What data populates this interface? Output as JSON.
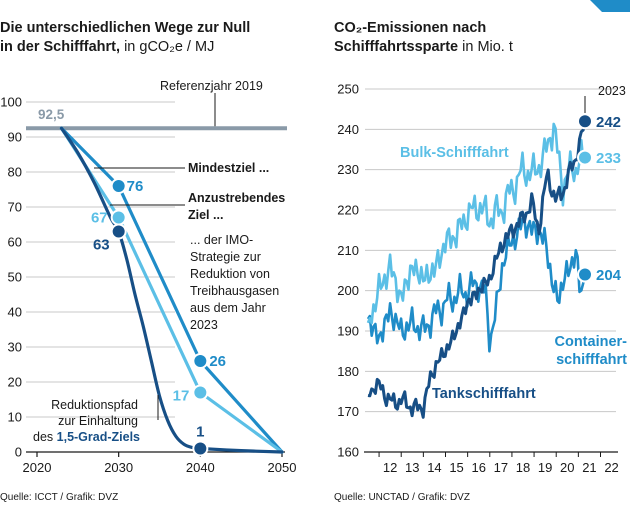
{
  "colors": {
    "ship_dark": "#174f86",
    "ship_mid": "#1f8cc8",
    "ship_light": "#5bbfe6",
    "reference": "#8a9aa8",
    "grid": "#c8c8c8",
    "text": "#1a1a1a"
  },
  "chart_data": [
    {
      "type": "line",
      "title": "Die unterschiedlichen Wege zur Null in der Schifffahrt,",
      "title_unit": "in gCO₂e / MJ",
      "xlim": [
        2020,
        2050
      ],
      "ylim": [
        0,
        100
      ],
      "xticks": [
        2020,
        2030,
        2040,
        2050
      ],
      "yticks": [
        0,
        10,
        20,
        30,
        40,
        50,
        60,
        70,
        80,
        90,
        100
      ],
      "reference": {
        "label": "Referenzjahr 2019",
        "value": 92.5,
        "value_label": "92,5",
        "x_start": 2023
      },
      "series": [
        {
          "key": "mindestziel",
          "name": "Mindestziel ...",
          "color_key": "ship_mid",
          "points": [
            [
              2023,
              92.5
            ],
            [
              2030,
              76
            ],
            [
              2040,
              26
            ],
            [
              2050,
              0
            ]
          ],
          "marked": [
            {
              "x": 2030,
              "y": 76,
              "label": "76"
            },
            {
              "x": 2040,
              "y": 26,
              "label": "26"
            }
          ]
        },
        {
          "key": "anzustrebend",
          "name": "Anzustrebendes Ziel ...",
          "color_key": "ship_light",
          "points": [
            [
              2023,
              92.5
            ],
            [
              2030,
              67
            ],
            [
              2040,
              17
            ],
            [
              2050,
              0
            ]
          ],
          "marked": [
            {
              "x": 2030,
              "y": 67,
              "label": "67"
            },
            {
              "x": 2040,
              "y": 17,
              "label": "17"
            }
          ]
        },
        {
          "key": "pfad15",
          "name": "Reduktionspfad zur Einhaltung des 1,5-Grad-Ziels",
          "color_key": "ship_dark",
          "points": [
            [
              2023,
              92.5
            ],
            [
              2025,
              85.5
            ],
            [
              2027,
              77
            ],
            [
              2029,
              67
            ],
            [
              2030,
              63
            ],
            [
              2031,
              55
            ],
            [
              2032,
              45
            ],
            [
              2033,
              36
            ],
            [
              2034,
              26
            ],
            [
              2035,
              16
            ],
            [
              2036,
              9
            ],
            [
              2037,
              4.5
            ],
            [
              2038,
              2.2
            ],
            [
              2039,
              1.3
            ],
            [
              2040,
              1
            ],
            [
              2045,
              0.4
            ],
            [
              2050,
              0
            ]
          ],
          "marked": [
            {
              "x": 2030,
              "y": 63,
              "label": "63"
            },
            {
              "x": 2040,
              "y": 1,
              "label": "1"
            }
          ]
        }
      ],
      "annotations": {
        "mindestziel": "Mindestziel ...",
        "anzustrebend": [
          "Anzustrebendes",
          "Ziel ..."
        ],
        "imo": [
          "... der IMO-",
          "Strategie zur",
          "Reduktion von",
          "Treibhausgasen",
          "aus dem Jahr",
          "2023"
        ],
        "pfad": [
          "Reduktionspfad",
          "zur Einhaltung",
          "des"
        ],
        "pfad_bold": "1,5-Grad-Ziels"
      }
    },
    {
      "type": "line",
      "title": "CO₂-Emissionen nach Schifffahrtssparte",
      "title_unit": "in Mio. t",
      "xlim": [
        2011.5,
        2022.7
      ],
      "ylim": [
        160,
        250
      ],
      "xticks": [
        12,
        13,
        14,
        15,
        16,
        17,
        18,
        19,
        20,
        21,
        22
      ],
      "yticks": [
        160,
        170,
        180,
        190,
        200,
        210,
        220,
        230,
        240,
        250
      ],
      "year_marker": "2023",
      "series": [
        {
          "key": "bulk",
          "name": "Bulk-Schifffahrt",
          "color_key": "ship_light",
          "end_label": "233",
          "anchors": [
            [
              2011.5,
              192
            ],
            [
              2012.0,
              200
            ],
            [
              2012.5,
              206
            ],
            [
              2013.0,
              198
            ],
            [
              2013.5,
              206
            ],
            [
              2014.0,
              203
            ],
            [
              2014.5,
              205
            ],
            [
              2015.0,
              212
            ],
            [
              2015.5,
              214
            ],
            [
              2016.0,
              219
            ],
            [
              2016.5,
              221
            ],
            [
              2017.0,
              218
            ],
            [
              2017.5,
              220
            ],
            [
              2018.0,
              225
            ],
            [
              2018.5,
              230
            ],
            [
              2019.0,
              229
            ],
            [
              2019.5,
              234
            ],
            [
              2019.9,
              241
            ],
            [
              2020.3,
              225
            ],
            [
              2020.6,
              231
            ],
            [
              2020.9,
              229
            ],
            [
              2021.1,
              234
            ],
            [
              2021.3,
              233
            ]
          ]
        },
        {
          "key": "container",
          "name": "Container-schifffahrt",
          "color_key": "ship_mid",
          "end_label": "204",
          "anchors": [
            [
              2011.5,
              193
            ],
            [
              2012.0,
              188
            ],
            [
              2012.5,
              195
            ],
            [
              2013.0,
              190
            ],
            [
              2013.5,
              192
            ],
            [
              2014.0,
              190
            ],
            [
              2014.5,
              194
            ],
            [
              2015.0,
              197
            ],
            [
              2015.5,
              199
            ],
            [
              2016.0,
              200
            ],
            [
              2016.5,
              202
            ],
            [
              2016.8,
              199
            ],
            [
              2017.0,
              188
            ],
            [
              2017.3,
              195
            ],
            [
              2017.6,
              208
            ],
            [
              2018.0,
              212
            ],
            [
              2018.5,
              217
            ],
            [
              2019.0,
              215
            ],
            [
              2019.5,
              213
            ],
            [
              2019.8,
              202
            ],
            [
              2020.1,
              198
            ],
            [
              2020.5,
              205
            ],
            [
              2020.9,
              209
            ],
            [
              2021.1,
              199
            ],
            [
              2021.3,
              204
            ]
          ]
        },
        {
          "key": "tank",
          "name": "Tankschifffahrt",
          "color_key": "ship_dark",
          "end_label": "242",
          "anchors": [
            [
              2011.5,
              174
            ],
            [
              2011.8,
              177
            ],
            [
              2012.2,
              175
            ],
            [
              2012.6,
              172
            ],
            [
              2013.0,
              173
            ],
            [
              2013.5,
              171
            ],
            [
              2014.0,
              171
            ],
            [
              2014.3,
              178
            ],
            [
              2014.6,
              182
            ],
            [
              2015.0,
              185
            ],
            [
              2015.5,
              190
            ],
            [
              2016.0,
              197
            ],
            [
              2016.5,
              200
            ],
            [
              2017.0,
              203
            ],
            [
              2017.5,
              211
            ],
            [
              2018.0,
              215
            ],
            [
              2018.5,
              218
            ],
            [
              2018.9,
              222
            ],
            [
              2019.2,
              215
            ],
            [
              2019.6,
              229
            ],
            [
              2020.0,
              222
            ],
            [
              2020.4,
              226
            ],
            [
              2020.8,
              232
            ],
            [
              2021.1,
              237
            ],
            [
              2021.3,
              242
            ]
          ]
        }
      ],
      "series_labels": {
        "bulk": "Bulk-Schifffahrt",
        "container": [
          "Container-",
          "schifffahrt"
        ],
        "tank": "Tankschifffahrt"
      }
    }
  ],
  "sources": {
    "left": "Quelle: ICCT / Grafik: DVZ",
    "right": "Quelle: UNCTAD / Grafik: DVZ"
  }
}
